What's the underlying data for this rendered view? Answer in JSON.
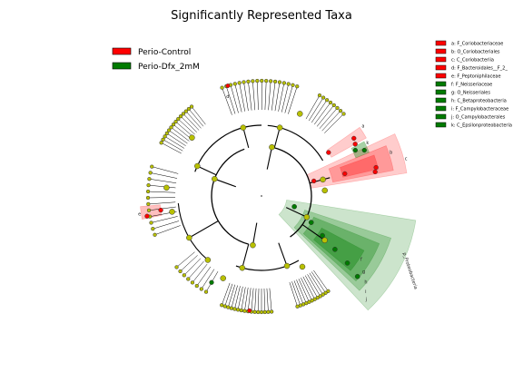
{
  "chart_data": {
    "type": "cladogram",
    "title": "Significantly Represented Taxa",
    "colors": {
      "Perio-Control": "#ff0000",
      "Perio-Dfx_2mM": "#007a00",
      "neutral": "#b8c000"
    },
    "groups": [
      {
        "name": "Perio-Control",
        "color": "#ff0000"
      },
      {
        "name": "Perio-Dfx_2mM",
        "color": "#007a00"
      }
    ],
    "taxa": [
      {
        "key": "a",
        "label": "a: F_Coriobacteriaceae",
        "group": "Perio-Control"
      },
      {
        "key": "b",
        "label": "b: O_Coriobacteriales",
        "group": "Perio-Control"
      },
      {
        "key": "c",
        "label": "c: C_Coriobacteriia",
        "group": "Perio-Control"
      },
      {
        "key": "d",
        "label": "d: F_Bacteroidales__F_2_",
        "group": "Perio-Control"
      },
      {
        "key": "e",
        "label": "e: F_Peptoniphilaceae",
        "group": "Perio-Control"
      },
      {
        "key": "f",
        "label": "f: F_Neisseriaceae",
        "group": "Perio-Dfx_2mM"
      },
      {
        "key": "g",
        "label": "g: O_Neisseriales",
        "group": "Perio-Dfx_2mM"
      },
      {
        "key": "h",
        "label": "h: C_Betaproteobacteria",
        "group": "Perio-Dfx_2mM"
      },
      {
        "key": "i",
        "label": "i: F_Campylobacteraceae",
        "group": "Perio-Dfx_2mM"
      },
      {
        "key": "j",
        "label": "j: O_Campylobacterales",
        "group": "Perio-Dfx_2mM"
      },
      {
        "key": "k",
        "label": "k: C_Epsilonproteobacteria",
        "group": "Perio-Dfx_2mM"
      }
    ],
    "clade_labels": [
      "a",
      "b",
      "c",
      "d",
      "e",
      "f",
      "g",
      "h",
      "i",
      "j",
      "k"
    ],
    "phylum_label": "p_Proteobacteria"
  }
}
